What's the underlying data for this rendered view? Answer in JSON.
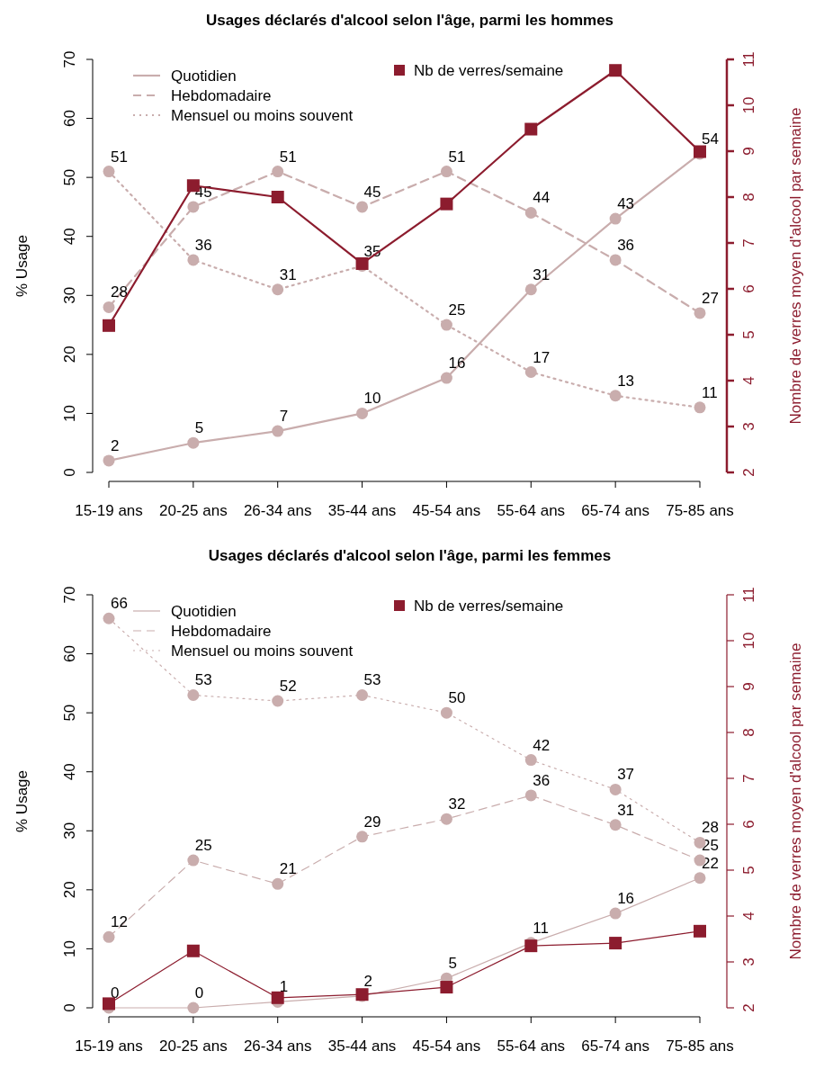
{
  "chart_data": [
    {
      "type": "line",
      "title": "Usages déclarés d'alcool selon l'âge, parmi les hommes",
      "ylabel": "% Usage",
      "y2label": "Nombre de verres moyen d'alcool par semaine",
      "categories": [
        "15-19 ans",
        "20-25 ans",
        "26-34 ans",
        "35-44 ans",
        "45-54 ans",
        "55-64 ans",
        "65-74 ans",
        "75-85 ans"
      ],
      "series": [
        {
          "name": "Quotidien",
          "color": "#c9adad",
          "line_style": "solid",
          "marker": "circle",
          "values": [
            2,
            5,
            7,
            10,
            16,
            31,
            43,
            54
          ],
          "value_labels": [
            "2",
            "5",
            "7",
            "10",
            "16",
            "31",
            "43",
            "54"
          ]
        },
        {
          "name": "Hebdomadaire",
          "color": "#c9adad",
          "line_style": "dashed",
          "marker": "circle",
          "values": [
            28,
            45,
            51,
            45,
            51,
            44,
            36,
            27
          ],
          "value_labels": [
            "28",
            "45",
            "51",
            "45",
            "51",
            "44",
            "36",
            "27"
          ]
        },
        {
          "name": "Mensuel ou moins souvent",
          "color": "#c9adad",
          "line_style": "dotted",
          "marker": "circle",
          "values": [
            51,
            36,
            31,
            35,
            25,
            17,
            13,
            11
          ],
          "value_labels": [
            "51",
            "36",
            "31",
            "35",
            "25",
            "17",
            "13",
            "11"
          ]
        },
        {
          "name": "Nb de verres/semaine",
          "color": "#8c1c2e",
          "line_style": "solid",
          "marker": "square",
          "axis": "y2",
          "values": [
            5.2,
            8.25,
            8.0,
            6.55,
            7.85,
            9.48,
            10.76,
            8.99
          ]
        }
      ],
      "ylim": [
        0,
        70
      ],
      "yticks": [
        0,
        10,
        20,
        30,
        40,
        50,
        60,
        70
      ],
      "y2lim": [
        2,
        11
      ],
      "y2ticks": [
        2,
        3,
        4,
        5,
        6,
        7,
        8,
        9,
        10,
        11
      ],
      "legend": "top",
      "grid": false
    },
    {
      "type": "line",
      "title": "Usages déclarés d'alcool selon l'âge, parmi les femmes",
      "ylabel": "% Usage",
      "y2label": "Nombre de verres moyen d'alcool par semaine",
      "categories": [
        "15-19 ans",
        "20-25 ans",
        "26-34 ans",
        "35-44 ans",
        "45-54 ans",
        "55-64 ans",
        "65-74 ans",
        "75-85 ans"
      ],
      "series": [
        {
          "name": "Quotidien",
          "color": "#c9adad",
          "line_style": "solid",
          "marker": "circle",
          "values": [
            0,
            0,
            1,
            2,
            5,
            11,
            16,
            22
          ],
          "value_labels": [
            "0",
            "0",
            "1",
            "2",
            "5",
            "11",
            "16",
            "22"
          ]
        },
        {
          "name": "Hebdomadaire",
          "color": "#c9adad",
          "line_style": "dashed",
          "marker": "circle",
          "values": [
            12,
            25,
            21,
            29,
            32,
            36,
            31,
            25
          ],
          "value_labels": [
            "12",
            "25",
            "21",
            "29",
            "32",
            "36",
            "31",
            "25"
          ]
        },
        {
          "name": "Mensuel ou moins souvent",
          "color": "#c9adad",
          "line_style": "dotted",
          "marker": "circle",
          "values": [
            66,
            53,
            52,
            53,
            50,
            42,
            37,
            28
          ],
          "value_labels": [
            "66",
            "53",
            "52",
            "53",
            "50",
            "42",
            "37",
            "28"
          ]
        },
        {
          "name": "Nb de verres/semaine",
          "color": "#8c1c2e",
          "line_style": "solid",
          "marker": "square",
          "axis": "y2",
          "values": [
            2.09,
            3.24,
            2.22,
            2.29,
            2.45,
            3.35,
            3.41,
            3.67
          ]
        }
      ],
      "ylim": [
        0,
        70
      ],
      "yticks": [
        0,
        10,
        20,
        30,
        40,
        50,
        60,
        70
      ],
      "y2lim": [
        2,
        11
      ],
      "y2ticks": [
        2,
        3,
        4,
        5,
        6,
        7,
        8,
        9,
        10,
        11
      ],
      "legend": "top",
      "grid": false
    }
  ]
}
